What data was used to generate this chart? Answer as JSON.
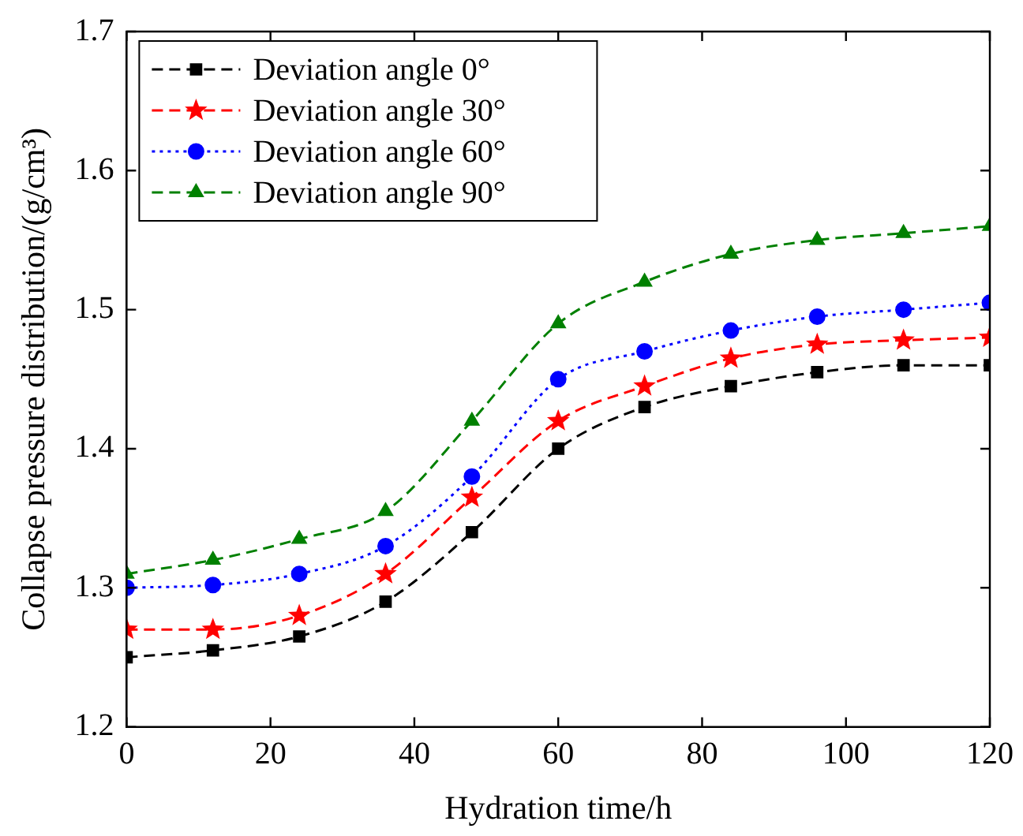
{
  "chart_data": {
    "type": "line",
    "xlabel": "Hydration time/h",
    "ylabel": "Collapse pressure distribution/(g/cm³)",
    "x": [
      0,
      12,
      24,
      36,
      48,
      60,
      72,
      84,
      96,
      108,
      120
    ],
    "series": [
      {
        "name": "Deviation angle 0°",
        "color": "#000000",
        "marker": "square",
        "line_style": "dashed",
        "values": [
          1.25,
          1.255,
          1.265,
          1.29,
          1.34,
          1.4,
          1.43,
          1.445,
          1.455,
          1.46,
          1.46
        ]
      },
      {
        "name": "Deviation angle 30°",
        "color": "#ff0000",
        "marker": "star",
        "line_style": "dashed",
        "values": [
          1.27,
          1.27,
          1.28,
          1.31,
          1.365,
          1.42,
          1.445,
          1.465,
          1.475,
          1.478,
          1.48
        ]
      },
      {
        "name": "Deviation angle 60°",
        "color": "#0000ff",
        "marker": "circle",
        "line_style": "dotted",
        "values": [
          1.3,
          1.302,
          1.31,
          1.33,
          1.38,
          1.45,
          1.47,
          1.485,
          1.495,
          1.5,
          1.505
        ]
      },
      {
        "name": "Deviation angle 90°",
        "color": "#008000",
        "marker": "triangle",
        "line_style": "dashed",
        "values": [
          1.31,
          1.32,
          1.335,
          1.355,
          1.42,
          1.49,
          1.52,
          1.54,
          1.55,
          1.555,
          1.56
        ]
      }
    ],
    "xlim": [
      0,
      120
    ],
    "xticks": [
      0,
      20,
      40,
      60,
      80,
      100,
      120
    ],
    "ylim": [
      1.2,
      1.7
    ],
    "yticks": [
      1.2,
      1.3,
      1.4,
      1.5,
      1.6,
      1.7
    ],
    "grid": false,
    "legend": "top left"
  }
}
